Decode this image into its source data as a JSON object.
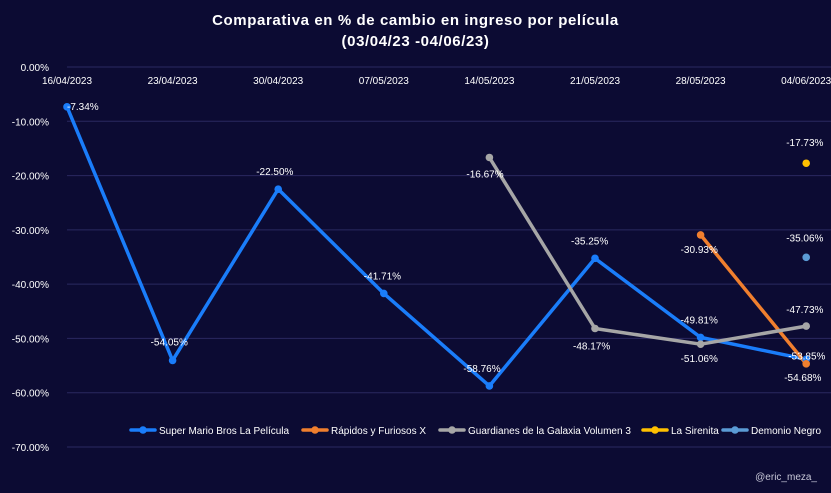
{
  "chart_data": {
    "type": "line",
    "title": "Comparativa en % de cambio en ingreso por película",
    "subtitle": "(03/04/23  -04/06/23)",
    "categories": [
      "16/04/2023",
      "23/04/2023",
      "30/04/2023",
      "07/05/2023",
      "14/05/2023",
      "21/05/2023",
      "28/05/2023",
      "04/06/2023"
    ],
    "yticks": [
      0,
      -10,
      -20,
      -30,
      -40,
      -50,
      -60,
      -70
    ],
    "ytick_labels": [
      "0.00%",
      "-10.00%",
      "-20.00%",
      "-30.00%",
      "-40.00%",
      "-50.00%",
      "-60.00%",
      "-70.00%"
    ],
    "ylim": [
      -70,
      0
    ],
    "grid": true,
    "legend_position": "bottom",
    "series": [
      {
        "name": "Super Mario Bros La Película",
        "color": "#1a7dfa",
        "values": [
          -7.34,
          -54.05,
          -22.5,
          -41.71,
          -58.76,
          -35.25,
          -49.81,
          -53.85
        ],
        "labels": [
          "-7.34%",
          "-54.05%",
          "-22.50%",
          "-41.71%",
          "-58.76%",
          "-35.25%",
          "-49.81%",
          "-53.85%"
        ]
      },
      {
        "name": "Rápidos y Furiosos X",
        "color": "#f07f2e",
        "values": [
          null,
          null,
          null,
          null,
          null,
          null,
          -30.93,
          -54.68
        ],
        "labels": [
          null,
          null,
          null,
          null,
          null,
          null,
          "-30.93%",
          "-54.68%"
        ]
      },
      {
        "name": "Guardianes de la Galaxia Volumen 3",
        "color": "#a6a6a6",
        "values": [
          null,
          null,
          null,
          null,
          -16.67,
          -48.17,
          -51.06,
          -47.73
        ],
        "labels": [
          null,
          null,
          null,
          null,
          "-16.67%",
          "-48.17%",
          "-51.06%",
          "-47.73%"
        ]
      },
      {
        "name": "La Sirenita",
        "color": "#ffc000",
        "values": [
          null,
          null,
          null,
          null,
          null,
          null,
          null,
          -17.73
        ],
        "labels": [
          null,
          null,
          null,
          null,
          null,
          null,
          null,
          "-17.73%"
        ]
      },
      {
        "name": "Demonio Negro",
        "color": "#5b9bd5",
        "values": [
          null,
          null,
          null,
          null,
          null,
          null,
          null,
          -35.06
        ],
        "labels": [
          null,
          null,
          null,
          null,
          null,
          null,
          null,
          "-35.06%"
        ]
      }
    ]
  },
  "credit": "@eric_meza_"
}
